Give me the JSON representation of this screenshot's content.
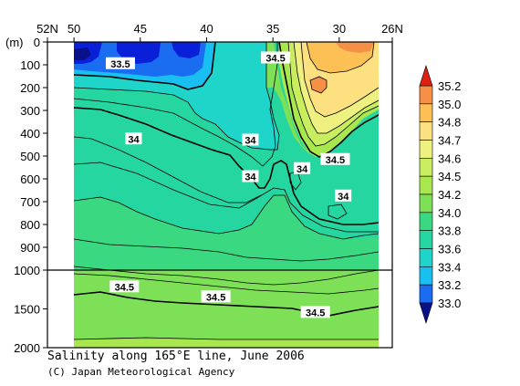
{
  "chart_data": {
    "type": "contour",
    "title": "Salinity along 165°E line, June 2006",
    "credit": "(C) Japan Meteorological Agency",
    "y_unit_label": "(m)",
    "x_tick_labels": [
      "52N",
      "50",
      "45",
      "40",
      "35",
      "30",
      "26N"
    ],
    "x_ticks_lat": [
      52,
      50,
      45,
      40,
      35,
      30,
      26
    ],
    "xlim_lat": [
      52,
      26
    ],
    "data_lat_range": [
      50,
      27.5
    ],
    "y_tick_labels_upper": [
      "0",
      "100",
      "200",
      "300",
      "400",
      "500",
      "600",
      "700",
      "800",
      "900",
      "1000"
    ],
    "y_ticks_upper": [
      0,
      100,
      200,
      300,
      400,
      500,
      600,
      700,
      800,
      900,
      1000
    ],
    "y_tick_labels_lower": [
      "1500",
      "2000"
    ],
    "y_ticks_lower": [
      1500,
      2000
    ],
    "ylim_depth_m": [
      0,
      2000
    ],
    "y_axis_break_m": 1000,
    "colorbar": {
      "levels": [
        "33.0",
        "33.2",
        "33.4",
        "33.6",
        "33.8",
        "34.0",
        "34.2",
        "34.5",
        "34.6",
        "34.7",
        "34.8",
        "35.0",
        "35.2"
      ],
      "colors": [
        "#0a1fd8",
        "#1a6cf0",
        "#18bff0",
        "#1fd4c8",
        "#25d6a0",
        "#3ad880",
        "#7ee056",
        "#a8e84e",
        "#c8ee60",
        "#eef080",
        "#fde080",
        "#fcc055",
        "#f59046",
        "#e8442e"
      ],
      "under_color": "#08108a",
      "over_color": "#dd2010"
    },
    "contour_labels": [
      {
        "text": "33.5",
        "lat": 46.5,
        "depth": 95
      },
      {
        "text": "34.5",
        "lat": 34.8,
        "depth": 70
      },
      {
        "text": "34",
        "lat": 45.5,
        "depth": 425
      },
      {
        "text": "34",
        "lat": 36.7,
        "depth": 430
      },
      {
        "text": "34",
        "lat": 36.7,
        "depth": 590
      },
      {
        "text": "34",
        "lat": 32.8,
        "depth": 555
      },
      {
        "text": "34.5",
        "lat": 30.3,
        "depth": 515
      },
      {
        "text": "34",
        "lat": 29.7,
        "depth": 675
      },
      {
        "text": "34.5",
        "lat": 46.2,
        "depth": 1215
      },
      {
        "text": "34.5",
        "lat": 39.3,
        "depth": 1345
      },
      {
        "text": "34.5",
        "lat": 31.8,
        "depth": 1545
      }
    ]
  }
}
